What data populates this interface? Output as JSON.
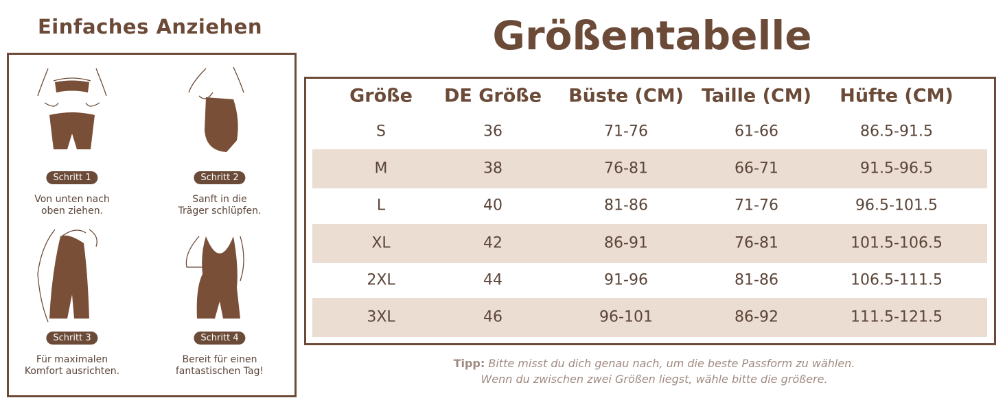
{
  "left": {
    "title": "Einfaches Anziehen",
    "steps": [
      {
        "badge": "Schritt 1",
        "lines": [
          "Von unten nach",
          "oben ziehen."
        ]
      },
      {
        "badge": "Schritt 2",
        "lines": [
          "Sanft in die",
          "Träger schlüpfen."
        ]
      },
      {
        "badge": "Schritt 3",
        "lines": [
          "Für maximalen",
          "Komfort ausrichten."
        ]
      },
      {
        "badge": "Schritt 4",
        "lines": [
          "Bereit für einen",
          "fantastischen Tag!"
        ]
      }
    ]
  },
  "right": {
    "title": "Größentabelle"
  },
  "table": {
    "header": [
      "Größe",
      "DE Größe",
      "Büste (CM)",
      "Taille (CM)",
      "Hüfte (CM)"
    ],
    "rows": [
      [
        "S",
        "36",
        "71-76",
        "61-66",
        "86.5-91.5"
      ],
      [
        "M",
        "38",
        "76-81",
        "66-71",
        "91.5-96.5"
      ],
      [
        "L",
        "40",
        "81-86",
        "71-76",
        "96.5-101.5"
      ],
      [
        "XL",
        "42",
        "86-91",
        "76-81",
        "101.5-106.5"
      ],
      [
        "2XL",
        "44",
        "91-96",
        "81-86",
        "106.5-111.5"
      ],
      [
        "3XL",
        "46",
        "96-101",
        "86-92",
        "111.5-121.5"
      ]
    ]
  },
  "tip": {
    "label": "Tipp:",
    "lines": [
      "Bitte misst du dich genau nach, um die beste Passform zu wählen.",
      "Wenn du zwischen zwei Größen liegst, wähle bitte die größere."
    ]
  }
}
